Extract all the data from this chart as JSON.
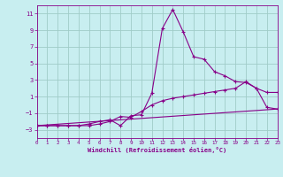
{
  "xlabel": "Windchill (Refroidissement éolien,°C)",
  "bg_color": "#c8eef0",
  "grid_color": "#a0ccc8",
  "line_color": "#880088",
  "xlim": [
    0,
    23
  ],
  "ylim": [
    -4,
    12
  ],
  "xticks": [
    0,
    1,
    2,
    3,
    4,
    5,
    6,
    7,
    8,
    9,
    10,
    11,
    12,
    13,
    14,
    15,
    16,
    17,
    18,
    19,
    20,
    21,
    22,
    23
  ],
  "yticks": [
    -3,
    -1,
    1,
    3,
    5,
    7,
    9,
    11
  ],
  "series1_x": [
    0,
    1,
    2,
    3,
    4,
    5,
    6,
    7,
    8,
    9,
    10,
    11,
    12,
    13,
    14,
    15,
    16,
    17,
    18,
    19,
    20,
    21,
    22,
    23
  ],
  "series1_y": [
    -2.5,
    -2.5,
    -2.5,
    -2.5,
    -2.5,
    -2.3,
    -2.0,
    -1.8,
    -2.5,
    -1.3,
    -1.2,
    1.4,
    9.2,
    11.5,
    8.8,
    5.8,
    5.5,
    4.0,
    3.5,
    2.8,
    2.7,
    2.0,
    1.5,
    1.5
  ],
  "series2_x": [
    0,
    1,
    2,
    3,
    4,
    5,
    6,
    7,
    8,
    9,
    10,
    11,
    12,
    13,
    14,
    15,
    16,
    17,
    18,
    19,
    20,
    21,
    22,
    23
  ],
  "series2_y": [
    -2.5,
    -2.5,
    -2.5,
    -2.5,
    -2.5,
    -2.5,
    -2.3,
    -2.0,
    -1.4,
    -1.5,
    -0.8,
    0.0,
    0.5,
    0.8,
    1.0,
    1.2,
    1.4,
    1.6,
    1.8,
    2.0,
    2.8,
    2.0,
    -0.3,
    -0.5
  ],
  "series3_x": [
    0,
    23
  ],
  "series3_y": [
    -2.5,
    -0.5
  ]
}
